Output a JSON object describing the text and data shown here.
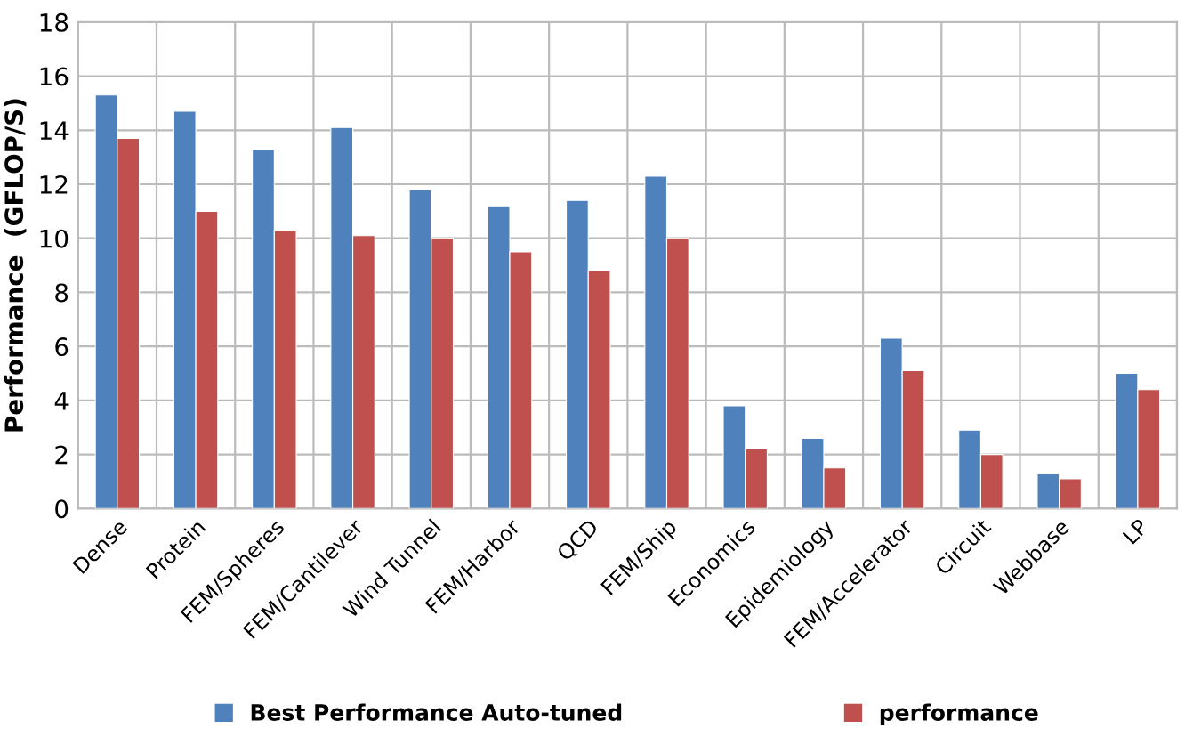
{
  "chart_data": {
    "type": "bar",
    "ylabel": "Performance  (GFLOP/S)",
    "categories": [
      "Dense",
      "Protein",
      "FEM/Spheres",
      "FEM/Cantilever",
      "Wind Tunnel",
      "FEM/Harbor",
      "QCD",
      "FEM/Ship",
      "Economics",
      "Epidemiology",
      "FEM/Accelerator",
      "Circuit",
      "Webbase",
      "LP"
    ],
    "series": [
      {
        "name": "Best Performance Auto-tuned",
        "color": "#4f81bd",
        "values": [
          15.3,
          14.7,
          13.3,
          14.1,
          11.8,
          11.2,
          11.4,
          12.3,
          3.8,
          2.6,
          6.3,
          2.9,
          1.3,
          5.0
        ]
      },
      {
        "name": "performance",
        "color": "#c0504d",
        "values": [
          13.7,
          11.0,
          10.3,
          10.1,
          10.0,
          9.5,
          8.8,
          10.0,
          2.2,
          1.5,
          5.1,
          2.0,
          1.1,
          4.4
        ]
      }
    ],
    "ylim": [
      0,
      18
    ],
    "yticks": [
      0,
      2,
      4,
      6,
      8,
      10,
      12,
      14,
      16,
      18
    ],
    "grid": true,
    "legend": "bottom"
  }
}
